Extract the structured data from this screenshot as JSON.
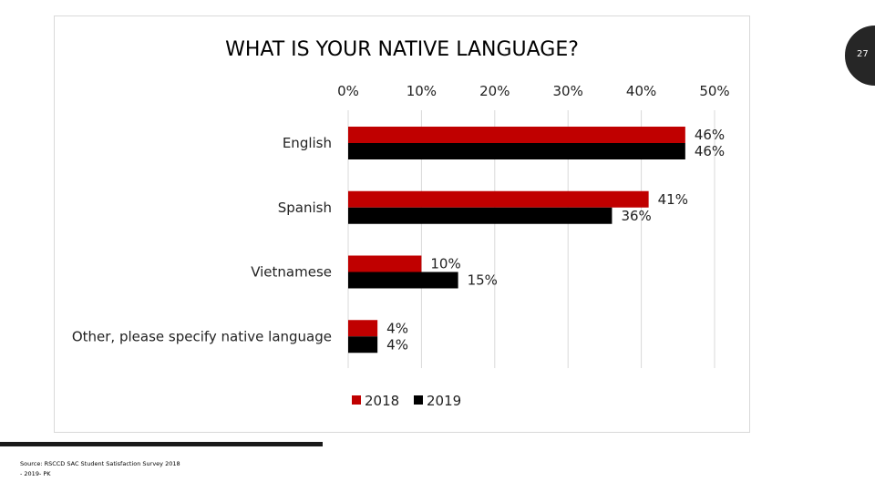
{
  "slide": {
    "page_number": "27",
    "source_line1": "Source: RSCCD SAC Student Satisfaction Survey 2018",
    "source_line2": "- 2019- PK"
  },
  "colors": {
    "series_2018": "#c00000",
    "series_2019": "#000000",
    "gridline": "#d9d9d9",
    "page_badge": "#262626"
  },
  "chart_data": {
    "type": "bar",
    "orientation": "horizontal",
    "title": "WHAT IS YOUR NATIVE LANGUAGE?",
    "categories": [
      "English",
      "Spanish",
      "Vietnamese",
      "Other, please specify native language"
    ],
    "series": [
      {
        "name": "2018",
        "values": [
          46,
          41,
          10,
          4
        ],
        "labels": [
          "46%",
          "41%",
          "10%",
          "4%"
        ]
      },
      {
        "name": "2019",
        "values": [
          46,
          36,
          15,
          4
        ],
        "labels": [
          "46%",
          "36%",
          "15%",
          "4%"
        ]
      }
    ],
    "xlim": [
      0,
      50
    ],
    "xticks": [
      0,
      10,
      20,
      30,
      40,
      50
    ],
    "xtick_labels": [
      "0%",
      "10%",
      "20%",
      "30%",
      "40%",
      "50%"
    ],
    "x_axis_position": "top",
    "grid": true,
    "legend_position": "bottom"
  }
}
